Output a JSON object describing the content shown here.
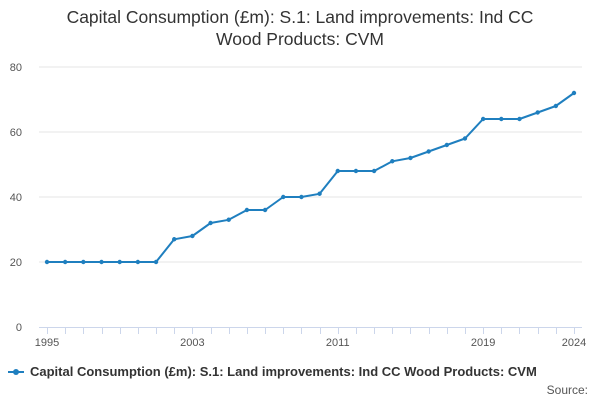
{
  "chart_data": {
    "type": "line",
    "title": "Capital Consumption (£m): S.1: Land improvements: Ind CC Wood Products: CVM",
    "title_lines": [
      "Capital Consumption (£m): S.1: Land improvements: Ind CC",
      "Wood Products: CVM"
    ],
    "x": [
      1995,
      1996,
      1997,
      1998,
      1999,
      2000,
      2001,
      2002,
      2003,
      2004,
      2005,
      2006,
      2007,
      2008,
      2009,
      2010,
      2011,
      2012,
      2013,
      2014,
      2015,
      2016,
      2017,
      2018,
      2019,
      2020,
      2021,
      2022,
      2023,
      2024
    ],
    "series": [
      {
        "name": "Capital Consumption (£m): S.1: Land improvements: Ind CC Wood Products: CVM",
        "color": "#1f7fbf",
        "values": [
          20,
          20,
          20,
          20,
          20,
          20,
          20,
          27,
          28,
          32,
          33,
          36,
          36,
          40,
          40,
          41,
          48,
          48,
          48,
          51,
          52,
          54,
          56,
          58,
          64,
          64,
          64,
          66,
          68,
          72
        ]
      }
    ],
    "xlim": [
      1995,
      2024
    ],
    "ylim": [
      0,
      80
    ],
    "x_ticks": [
      "1995",
      "2003",
      "2011",
      "2019",
      "2024"
    ],
    "y_ticks": [
      "0",
      "20",
      "40",
      "60",
      "80"
    ],
    "grid": "horizontal",
    "legend": "bottom-left"
  },
  "source_label": "Source:"
}
